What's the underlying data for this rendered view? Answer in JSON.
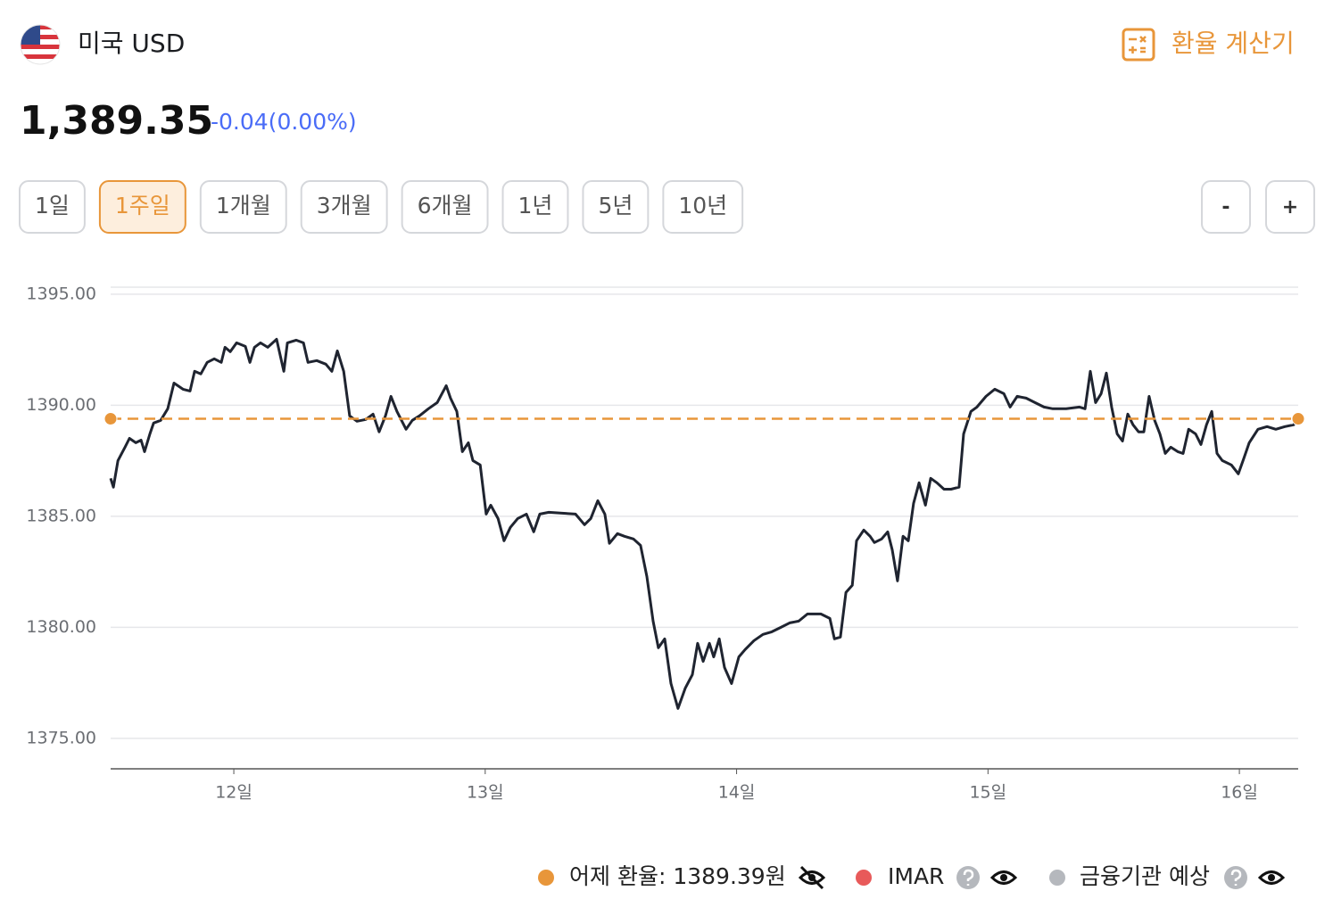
{
  "header": {
    "currency": "미국 USD",
    "calculator": "환율 계산기",
    "price": "1,389.35",
    "change": "-0.04(0.00%)"
  },
  "periods": {
    "options": [
      "1일",
      "1주일",
      "1개월",
      "3개월",
      "6개월",
      "1년",
      "5년",
      "10년"
    ],
    "selected": 1
  },
  "zoom": [
    "-",
    "+"
  ],
  "chart_data": {
    "type": "line",
    "color": "#1f2430",
    "grid": true,
    "x": [
      11.51,
      11.521,
      11.539,
      11.567,
      11.585,
      11.61,
      11.631,
      11.645,
      11.666,
      11.681,
      11.709,
      11.737,
      11.762,
      11.798,
      11.826,
      11.844,
      11.869,
      11.894,
      11.922,
      11.95,
      11.965,
      11.986,
      12.011,
      12.046,
      12.064,
      12.082,
      12.106,
      12.135,
      12.17,
      12.199,
      12.213,
      12.248,
      12.277,
      12.295,
      12.33,
      12.366,
      12.39,
      12.412,
      12.437,
      12.461,
      12.49,
      12.525,
      12.554,
      12.578,
      12.603,
      12.625,
      12.649,
      12.685,
      12.71,
      12.738,
      12.774,
      12.809,
      12.845,
      12.862,
      12.887,
      12.909,
      12.933,
      12.951,
      12.98,
      13.004,
      13.022,
      13.051,
      13.075,
      13.1,
      13.129,
      13.164,
      13.193,
      13.217,
      13.253,
      13.306,
      13.359,
      13.395,
      13.42,
      13.448,
      13.476,
      13.494,
      13.526,
      13.554,
      13.59,
      13.618,
      13.643,
      13.668,
      13.689,
      13.714,
      13.739,
      13.767,
      13.796,
      13.824,
      13.845,
      13.867,
      13.892,
      13.909,
      13.931,
      13.952,
      13.98,
      14.009,
      14.034,
      14.069,
      14.105,
      14.14,
      14.176,
      14.211,
      14.247,
      14.282,
      14.335,
      14.371,
      14.389,
      14.413,
      14.435,
      14.46,
      14.477,
      14.506,
      14.531,
      14.548,
      14.577,
      14.601,
      14.619,
      14.64,
      14.662,
      14.683,
      14.704,
      14.726,
      14.751,
      14.772,
      14.797,
      14.825,
      14.853,
      14.885,
      14.903,
      14.932,
      14.956,
      14.992,
      15.027,
      15.063,
      15.088,
      15.116,
      15.152,
      15.187,
      15.223,
      15.258,
      15.311,
      15.364,
      15.386,
      15.407,
      15.428,
      15.45,
      15.471,
      15.492,
      15.514,
      15.535,
      15.556,
      15.577,
      15.599,
      15.62,
      15.641,
      15.663,
      15.684,
      15.705,
      15.727,
      15.755,
      15.776,
      15.798,
      15.826,
      15.847,
      15.869,
      15.89,
      15.911,
      15.932,
      15.968,
      15.996,
      16.017,
      16.039,
      16.074,
      16.11,
      16.145,
      16.181,
      16.216,
      16.234
    ],
    "values": [
      1386.71,
      1386.31,
      1387.51,
      1388.11,
      1388.51,
      1388.31,
      1388.43,
      1387.91,
      1388.71,
      1389.2,
      1389.32,
      1389.84,
      1391.0,
      1390.72,
      1390.64,
      1391.53,
      1391.41,
      1391.93,
      1392.09,
      1391.93,
      1392.61,
      1392.41,
      1392.81,
      1392.65,
      1391.93,
      1392.61,
      1392.81,
      1392.61,
      1392.97,
      1391.53,
      1392.81,
      1392.93,
      1392.81,
      1391.93,
      1392.01,
      1391.85,
      1391.53,
      1392.45,
      1391.53,
      1389.52,
      1389.28,
      1389.36,
      1389.6,
      1388.8,
      1389.52,
      1390.4,
      1389.72,
      1388.92,
      1389.32,
      1389.52,
      1389.84,
      1390.12,
      1390.88,
      1390.32,
      1389.72,
      1387.91,
      1388.31,
      1387.51,
      1387.31,
      1385.1,
      1385.5,
      1384.9,
      1383.9,
      1384.5,
      1384.9,
      1385.1,
      1384.3,
      1385.1,
      1385.18,
      1385.14,
      1385.1,
      1384.62,
      1384.9,
      1385.7,
      1385.1,
      1383.78,
      1384.22,
      1384.1,
      1383.98,
      1383.69,
      1382.29,
      1380.28,
      1379.08,
      1379.48,
      1377.47,
      1376.35,
      1377.27,
      1377.87,
      1379.28,
      1378.47,
      1379.28,
      1378.67,
      1379.48,
      1378.19,
      1377.47,
      1378.67,
      1379.0,
      1379.4,
      1379.68,
      1379.8,
      1380.0,
      1380.2,
      1380.28,
      1380.6,
      1380.6,
      1380.4,
      1379.48,
      1379.56,
      1381.57,
      1381.89,
      1383.9,
      1384.38,
      1384.1,
      1383.82,
      1383.98,
      1384.3,
      1383.49,
      1382.09,
      1384.1,
      1383.9,
      1385.58,
      1386.51,
      1385.5,
      1386.71,
      1386.51,
      1386.22,
      1386.22,
      1386.31,
      1388.71,
      1389.72,
      1389.92,
      1390.4,
      1390.72,
      1390.52,
      1389.92,
      1390.4,
      1390.32,
      1390.12,
      1389.92,
      1389.84,
      1389.84,
      1389.92,
      1389.84,
      1391.53,
      1390.12,
      1390.52,
      1391.45,
      1389.92,
      1388.71,
      1388.39,
      1389.6,
      1389.12,
      1388.8,
      1388.8,
      1390.4,
      1389.32,
      1388.71,
      1387.83,
      1388.11,
      1387.91,
      1387.83,
      1388.92,
      1388.71,
      1388.23,
      1389.12,
      1389.72,
      1387.83,
      1387.51,
      1387.31,
      1386.91,
      1387.59,
      1388.31,
      1388.92,
      1389.04,
      1388.92,
      1389.04,
      1389.12,
      1389.52
    ],
    "xlim": [
      11.51,
      16.234
    ],
    "ylim": [
      1373.63,
      1395.5
    ],
    "xticks": [
      {
        "value": 12,
        "label": "12일"
      },
      {
        "value": 13,
        "label": "13일"
      },
      {
        "value": 14,
        "label": "14일"
      },
      {
        "value": 15,
        "label": "15일"
      },
      {
        "value": 16,
        "label": "16일"
      }
    ],
    "yticks": [
      {
        "value": 1375,
        "label": "1375.00"
      },
      {
        "value": 1380,
        "label": "1380.00"
      },
      {
        "value": 1385,
        "label": "1385.00"
      },
      {
        "value": 1390,
        "label": "1390.00"
      },
      {
        "value": 1395,
        "label": "1395.00"
      }
    ],
    "reference_line": {
      "value": 1389.39,
      "label": "어제 환율: 1389.39원",
      "color": "#e8963a"
    },
    "legend": [
      {
        "name": "IMAR",
        "color": "#e85a5a"
      },
      {
        "name": "금융기관 예상",
        "color": "#b5b8bd"
      }
    ]
  }
}
